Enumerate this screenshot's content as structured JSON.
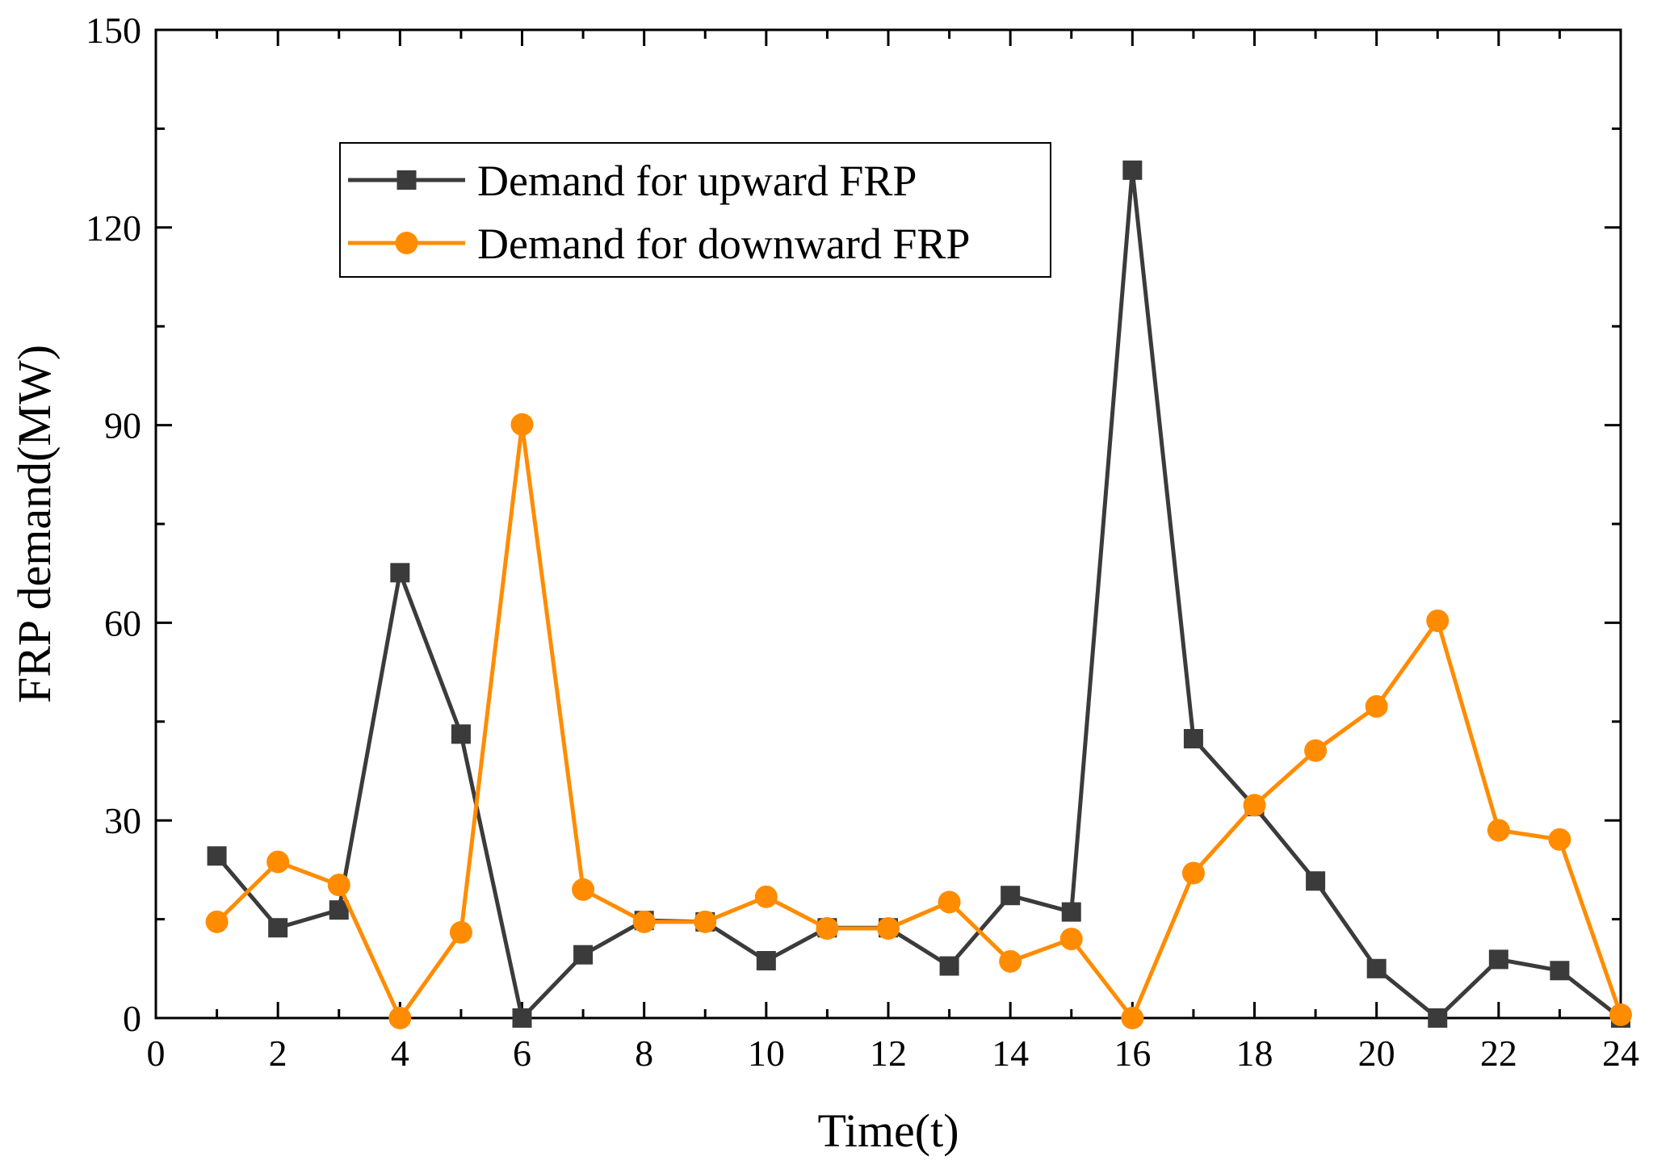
{
  "chart_data": {
    "type": "line",
    "title": "",
    "xlabel": "Time(t)",
    "ylabel": "FRP demand(MW)",
    "xlim": [
      0,
      24
    ],
    "ylim": [
      0,
      150
    ],
    "xticks": [
      0,
      2,
      4,
      6,
      8,
      10,
      12,
      14,
      16,
      18,
      20,
      22,
      24
    ],
    "yticks": [
      0,
      30,
      60,
      90,
      120,
      150
    ],
    "x": [
      1,
      2,
      3,
      4,
      5,
      6,
      7,
      8,
      9,
      10,
      11,
      12,
      13,
      14,
      15,
      16,
      17,
      18,
      19,
      20,
      21,
      22,
      23,
      24
    ],
    "legend_position": "top-left",
    "series": [
      {
        "name": "Demand for upward FRP",
        "marker": "square",
        "color": "#3b3b3b",
        "values": [
          24.6,
          13.7,
          16.4,
          67.6,
          43.1,
          0,
          9.6,
          14.8,
          14.6,
          8.7,
          13.7,
          13.7,
          7.9,
          18.6,
          16.1,
          128.7,
          42.4,
          32.1,
          20.8,
          7.5,
          0,
          8.9,
          7.2,
          0
        ]
      },
      {
        "name": "Demand for downward FRP",
        "marker": "circle",
        "color": "#ff8c00",
        "values": [
          14.6,
          23.7,
          20.2,
          0,
          13.0,
          90.1,
          19.5,
          14.6,
          14.6,
          18.4,
          13.6,
          13.6,
          17.6,
          8.6,
          12.0,
          0,
          22.0,
          32.3,
          40.6,
          47.3,
          60.3,
          28.5,
          27.1,
          0.5
        ]
      }
    ]
  }
}
